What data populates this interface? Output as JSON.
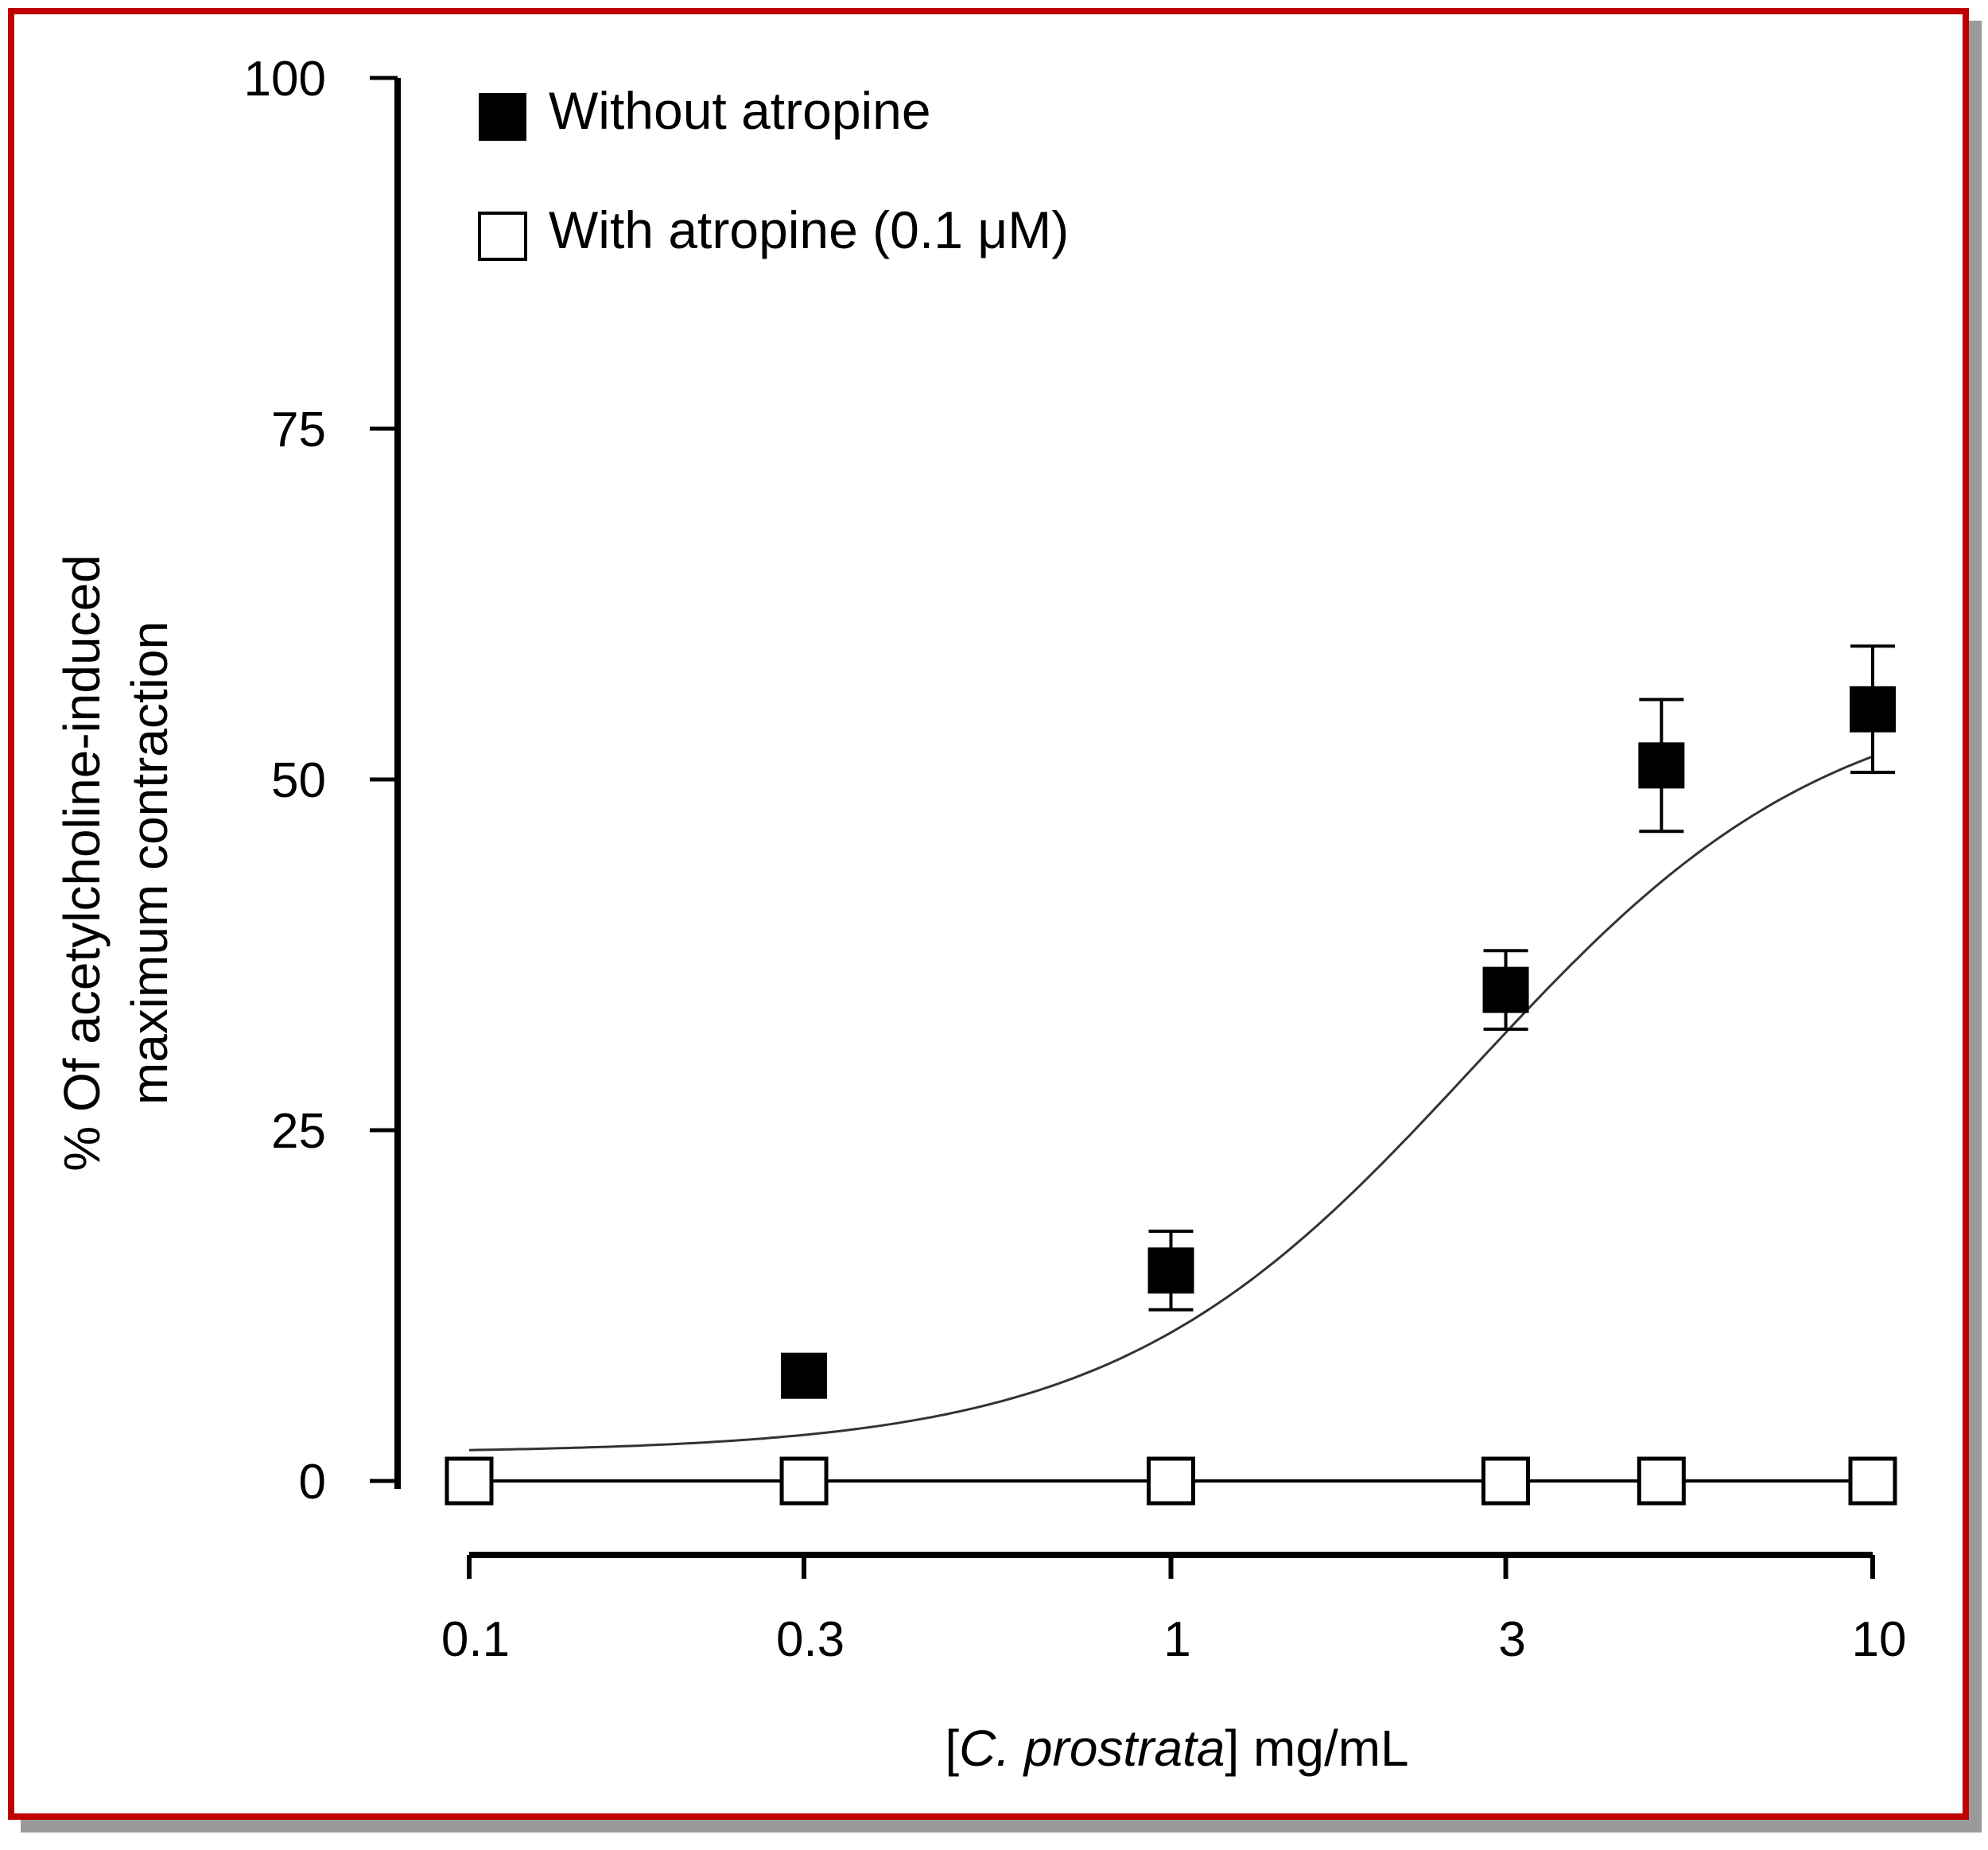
{
  "chart_data": {
    "type": "scatter",
    "x_scale": "log",
    "xlim": [
      0.1,
      10
    ],
    "ylim": [
      0,
      100
    ],
    "x_ticks": [
      0.1,
      0.3,
      1,
      3,
      10
    ],
    "x_tick_labels": [
      "0.1",
      "0.3",
      "1",
      "3",
      "10"
    ],
    "y_ticks": [
      0,
      25,
      50,
      75,
      100
    ],
    "y_tick_labels": [
      "0",
      "25",
      "50",
      "75",
      "100"
    ],
    "xlabel": {
      "prefix": "[",
      "italic": "C. prostrata",
      "suffix": "] mg/mL"
    },
    "ylabel": [
      "% Of acetylcholine-induced",
      "maximum contraction"
    ],
    "legend_position": "top-left",
    "grid": false,
    "series": [
      {
        "name": "Without atropine",
        "marker": "filled-square",
        "color": "#000000",
        "points": [
          {
            "x": 0.1,
            "y": 0,
            "err": 0
          },
          {
            "x": 0.3,
            "y": 7.5,
            "err": 0
          },
          {
            "x": 1,
            "y": 15,
            "err": 2.8
          },
          {
            "x": 3,
            "y": 35,
            "err": 2.8
          },
          {
            "x": 5,
            "y": 51,
            "err": 4.7
          },
          {
            "x": 10,
            "y": 55,
            "err": 4.5
          }
        ],
        "fit_curve": {
          "bottom": 2,
          "top": 57,
          "ec50": 2.7,
          "hill": 1.7
        }
      },
      {
        "name": "With atropine (0.1 μM)",
        "marker": "open-square",
        "color": "#000000",
        "points": [
          {
            "x": 0.1,
            "y": 0,
            "err": 0
          },
          {
            "x": 0.3,
            "y": 0,
            "err": 0
          },
          {
            "x": 1,
            "y": 0,
            "err": 0
          },
          {
            "x": 3,
            "y": 0,
            "err": 0
          },
          {
            "x": 5,
            "y": 0,
            "err": 0
          },
          {
            "x": 10,
            "y": 0,
            "err": 0
          }
        ]
      }
    ]
  }
}
